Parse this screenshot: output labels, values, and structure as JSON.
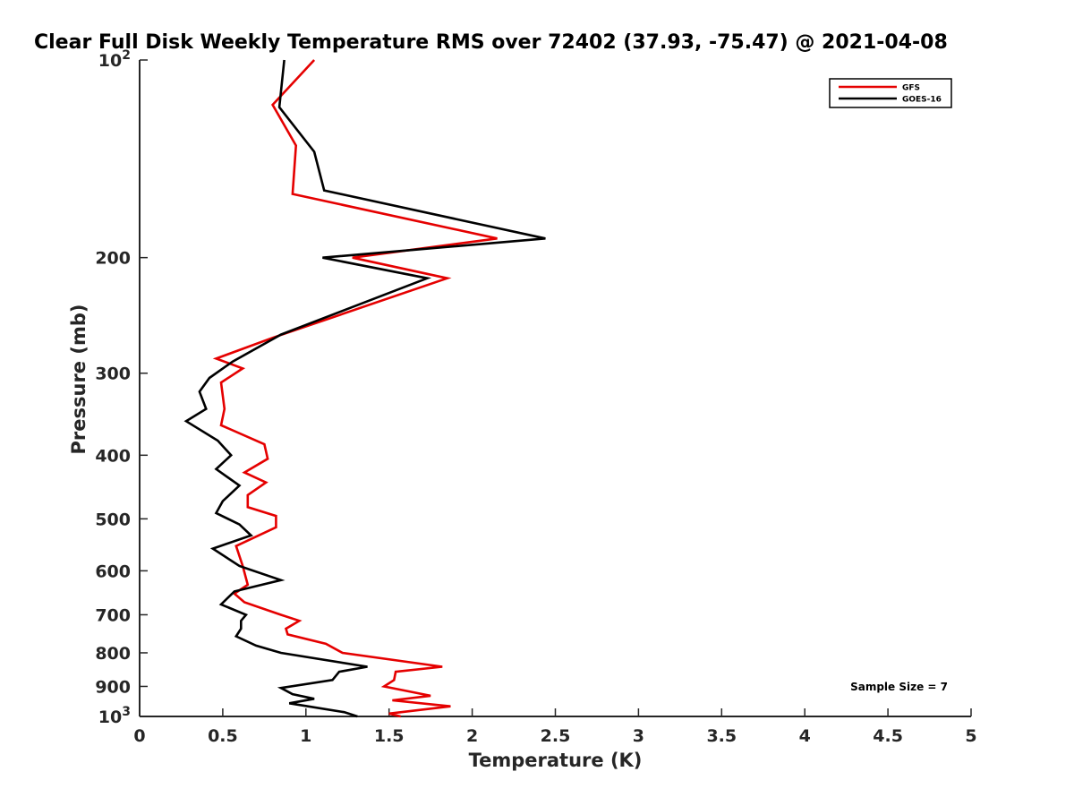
{
  "chart_data": {
    "type": "line",
    "title": "Clear Full Disk Weekly Temperature RMS over 72402 (37.93, -75.47) @ 2021-04-08",
    "xlabel": "Temperature (K)",
    "ylabel": "Pressure (mb)",
    "xlim": [
      0,
      5
    ],
    "ylim": [
      100,
      1000
    ],
    "y_scale": "log",
    "y_reversed": true,
    "x_ticks": [
      {
        "v": 0,
        "label": "0"
      },
      {
        "v": 0.5,
        "label": "0.5"
      },
      {
        "v": 1,
        "label": "1"
      },
      {
        "v": 1.5,
        "label": "1.5"
      },
      {
        "v": 2,
        "label": "2"
      },
      {
        "v": 2.5,
        "label": "2.5"
      },
      {
        "v": 3,
        "label": "3"
      },
      {
        "v": 3.5,
        "label": "3.5"
      },
      {
        "v": 4,
        "label": "4"
      },
      {
        "v": 4.5,
        "label": "4.5"
      },
      {
        "v": 5,
        "label": "5"
      }
    ],
    "y_ticks": [
      {
        "v": 100,
        "label": "10",
        "sup": "2"
      },
      {
        "v": 200,
        "label": "200",
        "sup": ""
      },
      {
        "v": 300,
        "label": "300",
        "sup": ""
      },
      {
        "v": 400,
        "label": "400",
        "sup": ""
      },
      {
        "v": 500,
        "label": "500",
        "sup": ""
      },
      {
        "v": 600,
        "label": "600",
        "sup": ""
      },
      {
        "v": 700,
        "label": "700",
        "sup": ""
      },
      {
        "v": 800,
        "label": "800",
        "sup": ""
      },
      {
        "v": 900,
        "label": "900",
        "sup": ""
      },
      {
        "v": 1000,
        "label": "10",
        "sup": "3"
      }
    ],
    "grid": false,
    "legend_position": "top-right",
    "series": [
      {
        "name": "GFS",
        "color": "#e50000",
        "points": [
          [
            1.05,
            100
          ],
          [
            0.8,
            117
          ],
          [
            0.94,
            135
          ],
          [
            0.92,
            160
          ],
          [
            2.15,
            187
          ],
          [
            1.28,
            200
          ],
          [
            1.85,
            215
          ],
          [
            0.8,
            265
          ],
          [
            0.46,
            285
          ],
          [
            0.62,
            295
          ],
          [
            0.49,
            310
          ],
          [
            0.51,
            340
          ],
          [
            0.49,
            360
          ],
          [
            0.75,
            385
          ],
          [
            0.77,
            405
          ],
          [
            0.63,
            425
          ],
          [
            0.76,
            440
          ],
          [
            0.65,
            460
          ],
          [
            0.65,
            480
          ],
          [
            0.82,
            495
          ],
          [
            0.82,
            515
          ],
          [
            0.58,
            550
          ],
          [
            0.62,
            590
          ],
          [
            0.65,
            630
          ],
          [
            0.57,
            650
          ],
          [
            0.63,
            670
          ],
          [
            0.85,
            700
          ],
          [
            0.96,
            715
          ],
          [
            0.88,
            735
          ],
          [
            0.89,
            750
          ],
          [
            1.12,
            775
          ],
          [
            1.22,
            800
          ],
          [
            1.82,
            840
          ],
          [
            1.54,
            855
          ],
          [
            1.53,
            880
          ],
          [
            1.47,
            900
          ],
          [
            1.75,
            930
          ],
          [
            1.52,
            945
          ],
          [
            1.87,
            965
          ],
          [
            1.5,
            990
          ],
          [
            1.57,
            1000
          ]
        ]
      },
      {
        "name": "GOES-16",
        "color": "#000000",
        "points": [
          [
            0.87,
            100
          ],
          [
            0.84,
            118
          ],
          [
            1.05,
            138
          ],
          [
            1.11,
            158
          ],
          [
            2.44,
            187
          ],
          [
            1.1,
            200
          ],
          [
            1.73,
            215
          ],
          [
            0.85,
            262
          ],
          [
            0.56,
            288
          ],
          [
            0.42,
            305
          ],
          [
            0.36,
            320
          ],
          [
            0.4,
            340
          ],
          [
            0.28,
            355
          ],
          [
            0.47,
            380
          ],
          [
            0.55,
            400
          ],
          [
            0.46,
            420
          ],
          [
            0.6,
            445
          ],
          [
            0.5,
            470
          ],
          [
            0.46,
            490
          ],
          [
            0.6,
            510
          ],
          [
            0.67,
            530
          ],
          [
            0.44,
            555
          ],
          [
            0.6,
            590
          ],
          [
            0.85,
            620
          ],
          [
            0.57,
            645
          ],
          [
            0.49,
            675
          ],
          [
            0.64,
            700
          ],
          [
            0.61,
            715
          ],
          [
            0.61,
            735
          ],
          [
            0.58,
            755
          ],
          [
            0.7,
            780
          ],
          [
            0.85,
            800
          ],
          [
            1.37,
            840
          ],
          [
            1.2,
            855
          ],
          [
            1.16,
            880
          ],
          [
            0.85,
            905
          ],
          [
            0.92,
            925
          ],
          [
            1.05,
            940
          ],
          [
            0.9,
            955
          ],
          [
            1.23,
            985
          ],
          [
            1.31,
            1000
          ]
        ]
      }
    ],
    "annotations": [
      {
        "text": "Sample Size = 7"
      }
    ]
  }
}
